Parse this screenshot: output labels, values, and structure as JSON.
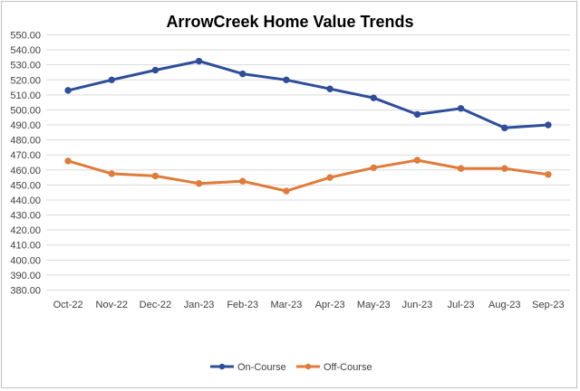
{
  "chart_data": {
    "type": "line",
    "title": "ArrowCreek Home Value Trends",
    "categories": [
      "Oct-22",
      "Nov-22",
      "Dec-22",
      "Jan-23",
      "Feb-23",
      "Mar-23",
      "Apr-23",
      "May-23",
      "Jun-23",
      "Jul-23",
      "Aug-23",
      "Sep-23"
    ],
    "series": [
      {
        "name": "On-Course",
        "color": "#2e4e9a",
        "values": [
          513,
          520,
          526.5,
          532.5,
          524,
          520,
          514,
          508,
          497,
          501,
          488,
          490
        ]
      },
      {
        "name": "Off-Course",
        "color": "#e07b39",
        "values": [
          466,
          457.5,
          456,
          451,
          452.5,
          446,
          455,
          461.5,
          466.5,
          461,
          461,
          457
        ]
      }
    ],
    "ylim": [
      380,
      550
    ],
    "yticks": [
      "550.00",
      "540.00",
      "530.00",
      "520.00",
      "510.00",
      "500.00",
      "490.00",
      "480.00",
      "470.00",
      "460.00",
      "450.00",
      "440.00",
      "430.00",
      "420.00",
      "410.00",
      "400.00",
      "390.00",
      "380.00"
    ],
    "grid": true,
    "legend_position": "bottom"
  }
}
